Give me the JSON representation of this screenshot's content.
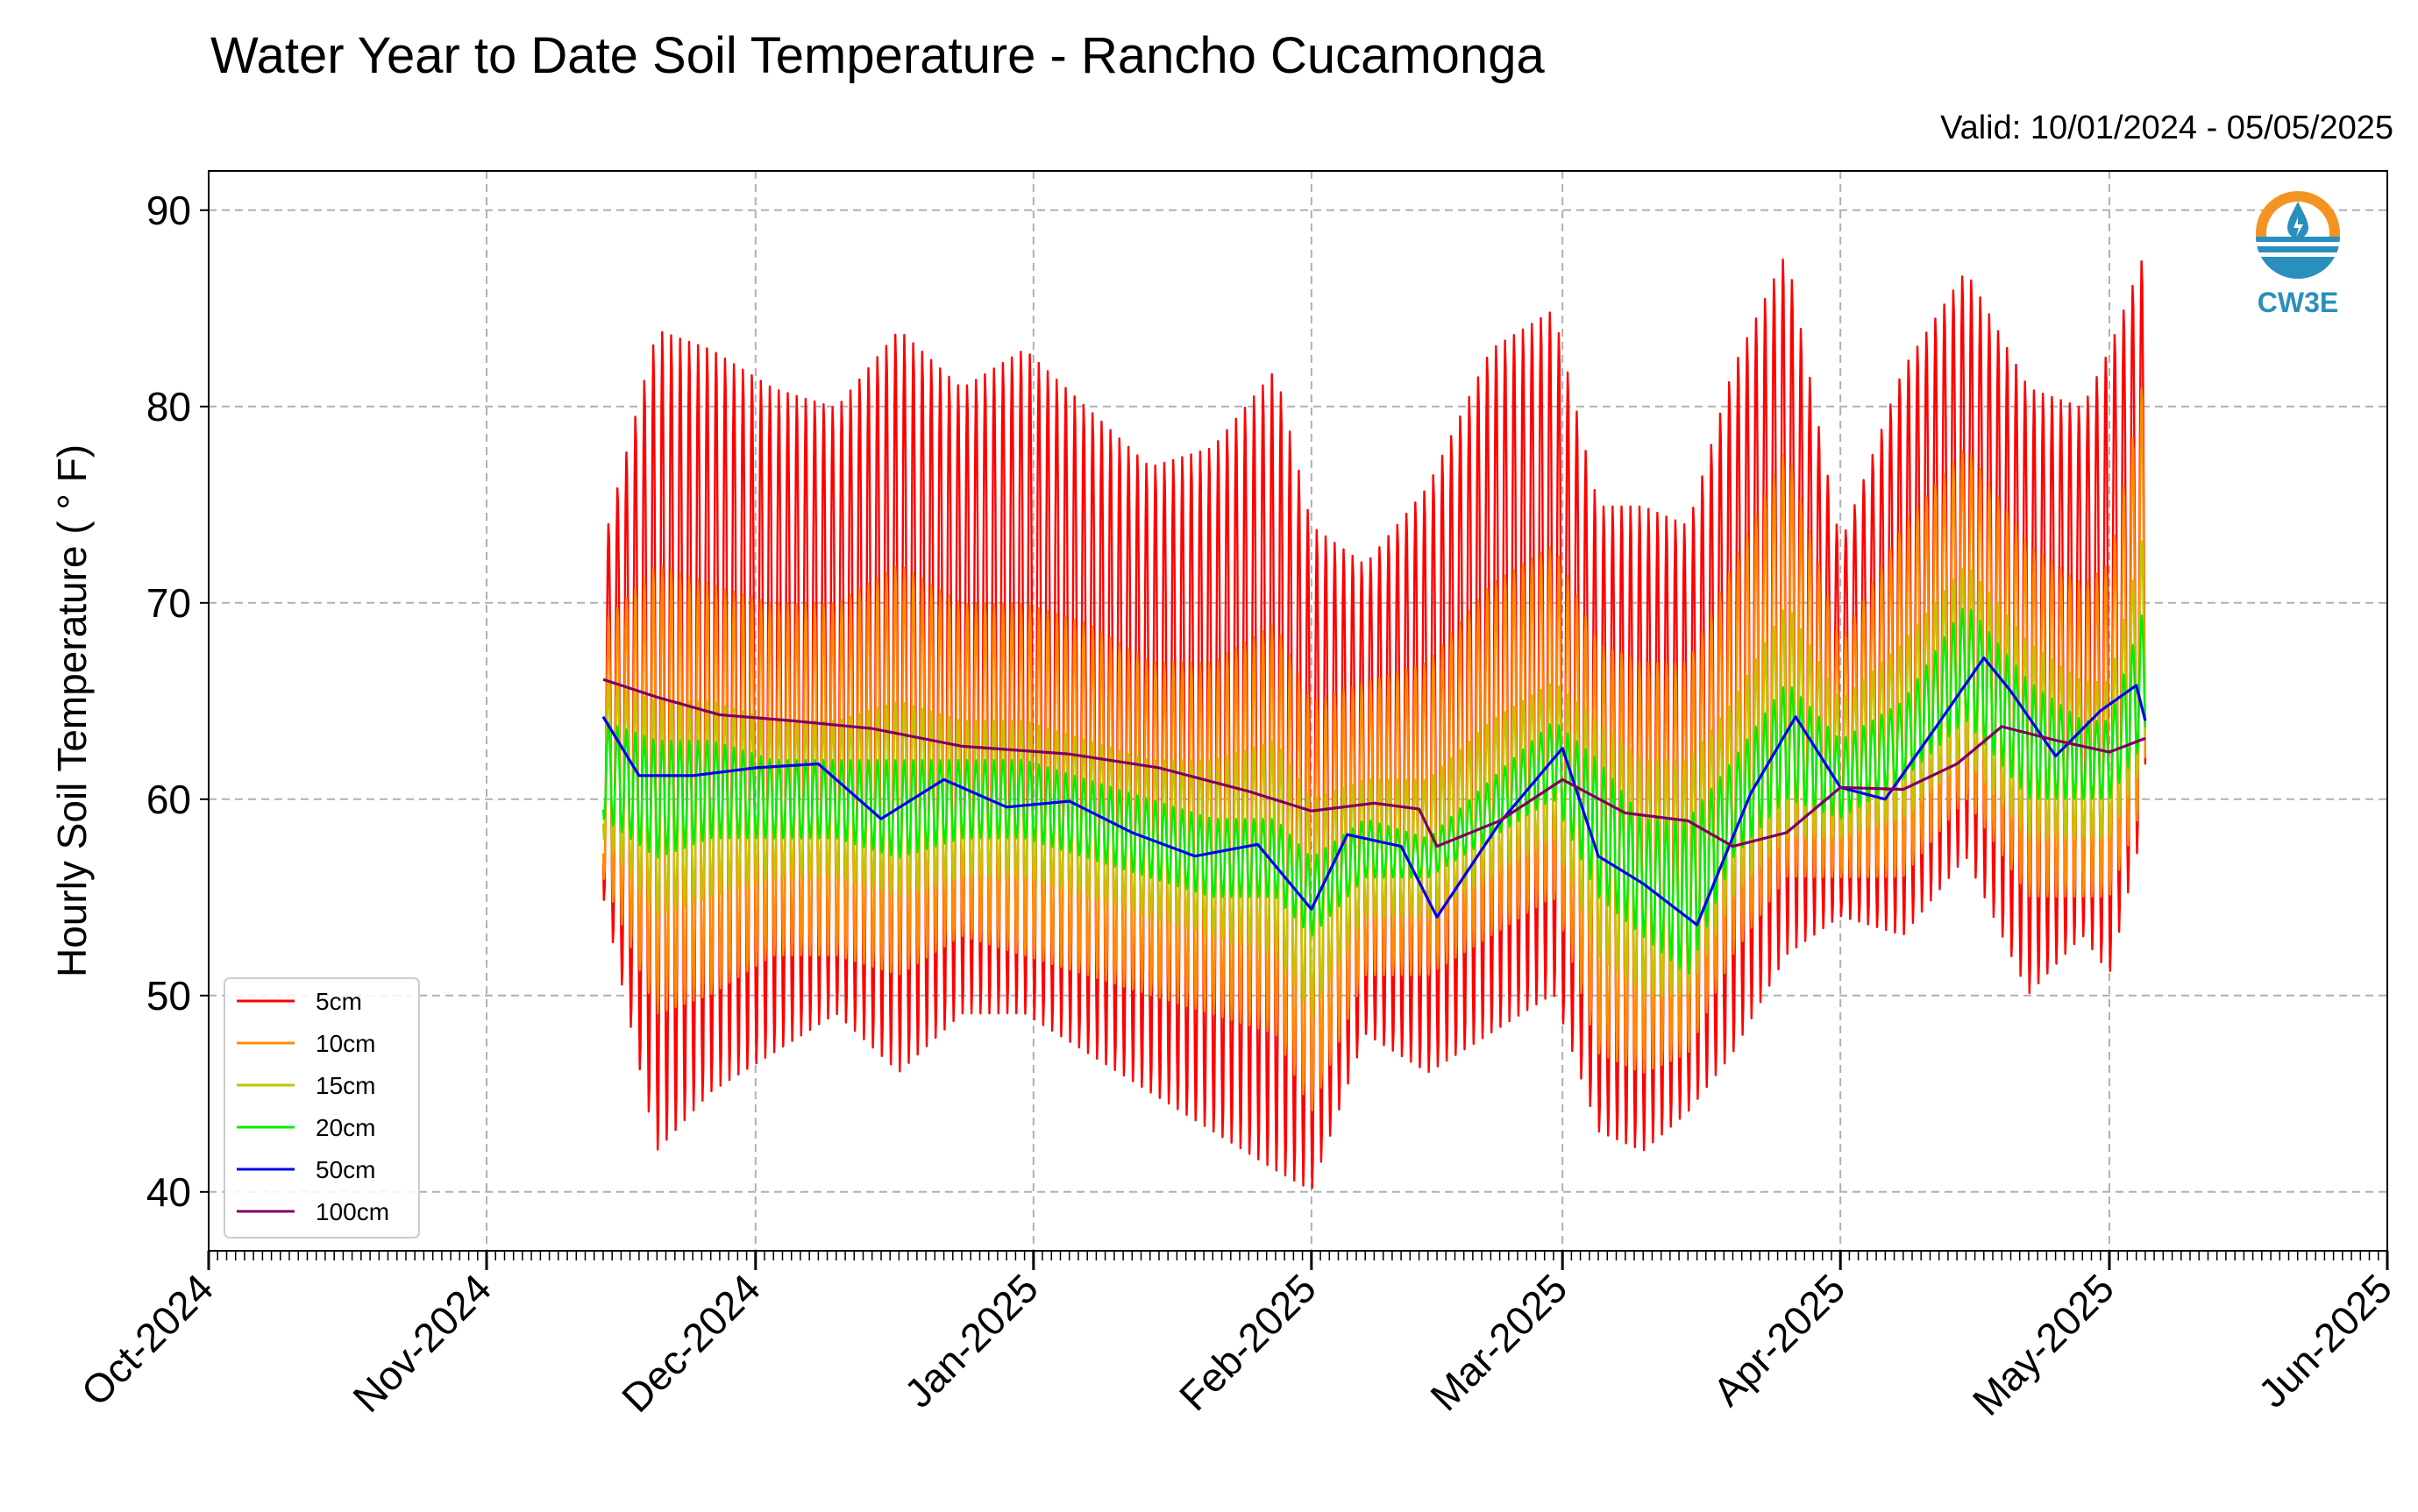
{
  "header": {
    "title": "Water Year to Date Soil Temperature - Rancho Cucamonga",
    "valid": "Valid: 10/01/2024 - 05/05/2025"
  },
  "logo": {
    "text": "CW3E",
    "icon": "water-drop-logo",
    "color": "#2a8fbd",
    "accent": "#f39422"
  },
  "chart_data": {
    "type": "line",
    "title": "Water Year to Date Soil Temperature - Rancho Cucamonga",
    "ylabel": "Hourly Soil Temperature ( ° F)",
    "xlabel": "",
    "ylim": [
      37,
      92
    ],
    "xlim": [
      "2024-10-01",
      "2025-06-01"
    ],
    "grid": true,
    "legend_position": "lower-left",
    "yticks": [
      40,
      50,
      60,
      70,
      80,
      90
    ],
    "xticks": [
      {
        "date": "2024-10-01",
        "label": "Oct-2024"
      },
      {
        "date": "2024-11-01",
        "label": "Nov-2024"
      },
      {
        "date": "2024-12-01",
        "label": "Dec-2024"
      },
      {
        "date": "2025-01-01",
        "label": "Jan-2025"
      },
      {
        "date": "2025-02-01",
        "label": "Feb-2025"
      },
      {
        "date": "2025-03-01",
        "label": "Mar-2025"
      },
      {
        "date": "2025-04-01",
        "label": "Apr-2025"
      },
      {
        "date": "2025-05-01",
        "label": "May-2025"
      },
      {
        "date": "2025-06-01",
        "label": "Jun-2025"
      }
    ],
    "series": [
      {
        "name": "5cm",
        "color": "#ff0000",
        "x": [
          "2024-11-14",
          "2024-11-20",
          "2024-11-26",
          "2024-12-03",
          "2024-12-10",
          "2024-12-17",
          "2024-12-24",
          "2024-12-31",
          "2025-01-07",
          "2025-01-14",
          "2025-01-21",
          "2025-01-28",
          "2025-02-01",
          "2025-02-07",
          "2025-02-14",
          "2025-02-21",
          "2025-02-28",
          "2025-03-05",
          "2025-03-10",
          "2025-03-15",
          "2025-03-20",
          "2025-03-26",
          "2025-04-01",
          "2025-04-08",
          "2025-04-15",
          "2025-04-22",
          "2025-04-28",
          "2025-05-01",
          "2025-05-05"
        ],
        "max": [
          73,
          84,
          83,
          81,
          80,
          84,
          81,
          83,
          80,
          77,
          78,
          82,
          74,
          72,
          76,
          83,
          85,
          75,
          75,
          74,
          82,
          88,
          73,
          82,
          87,
          81,
          80,
          83,
          88
        ],
        "min": [
          55,
          42,
          45,
          47,
          49,
          46,
          49,
          49,
          47,
          45,
          43,
          41,
          40,
          48,
          46,
          48,
          50,
          43,
          42,
          44,
          47,
          52,
          54,
          53,
          57,
          50,
          53,
          51,
          59
        ]
      },
      {
        "name": "10cm",
        "color": "#ff8c00",
        "x": [
          "2024-11-14",
          "2024-11-20",
          "2024-11-26",
          "2024-12-03",
          "2024-12-10",
          "2024-12-17",
          "2024-12-24",
          "2024-12-31",
          "2025-01-07",
          "2025-01-14",
          "2025-01-21",
          "2025-01-28",
          "2025-02-01",
          "2025-02-07",
          "2025-02-14",
          "2025-02-21",
          "2025-02-28",
          "2025-03-05",
          "2025-03-10",
          "2025-03-15",
          "2025-03-20",
          "2025-03-26",
          "2025-04-01",
          "2025-04-08",
          "2025-04-15",
          "2025-04-22",
          "2025-04-28",
          "2025-05-01",
          "2025-05-05"
        ],
        "max": [
          69,
          72,
          71,
          70,
          70,
          72,
          70,
          70,
          69,
          67,
          67,
          69,
          65,
          66,
          67,
          71,
          73,
          68,
          67,
          67,
          72,
          78,
          68,
          74,
          78,
          73,
          71,
          72,
          82
        ],
        "min": [
          56,
          49,
          50,
          52,
          52,
          51,
          53,
          52,
          51,
          50,
          49,
          48,
          44,
          51,
          51,
          53,
          55,
          47,
          46,
          47,
          52,
          56,
          56,
          56,
          60,
          55,
          55,
          55,
          60
        ]
      },
      {
        "name": "15cm",
        "color": "#c4c400",
        "x": [
          "2024-11-14",
          "2024-11-20",
          "2024-11-26",
          "2024-12-03",
          "2024-12-10",
          "2024-12-17",
          "2024-12-24",
          "2024-12-31",
          "2025-01-07",
          "2025-01-14",
          "2025-01-21",
          "2025-01-28",
          "2025-02-01",
          "2025-02-07",
          "2025-02-14",
          "2025-02-21",
          "2025-02-28",
          "2025-03-05",
          "2025-03-10",
          "2025-03-15",
          "2025-03-20",
          "2025-03-26",
          "2025-04-01",
          "2025-04-08",
          "2025-04-15",
          "2025-04-22",
          "2025-04-28",
          "2025-05-01",
          "2025-05-05"
        ],
        "max": [
          66,
          65,
          65,
          64,
          64,
          65,
          64,
          64,
          63,
          62,
          62,
          63,
          60,
          61,
          61,
          64,
          66,
          64,
          62,
          62,
          65,
          70,
          65,
          68,
          72,
          68,
          66,
          66,
          74
        ],
        "min": [
          58,
          54,
          55,
          56,
          56,
          55,
          56,
          56,
          55,
          54,
          53,
          52,
          49,
          54,
          54,
          56,
          58,
          52,
          50,
          50,
          55,
          58,
          58,
          59,
          62,
          58,
          58,
          58,
          62
        ]
      },
      {
        "name": "20cm",
        "color": "#00ee00",
        "x": [
          "2024-11-14",
          "2024-11-20",
          "2024-11-26",
          "2024-12-03",
          "2024-12-10",
          "2024-12-17",
          "2024-12-24",
          "2024-12-31",
          "2025-01-07",
          "2025-01-14",
          "2025-01-21",
          "2025-01-28",
          "2025-02-01",
          "2025-02-07",
          "2025-02-14",
          "2025-02-21",
          "2025-02-28",
          "2025-03-05",
          "2025-03-10",
          "2025-03-15",
          "2025-03-20",
          "2025-03-26",
          "2025-04-01",
          "2025-04-08",
          "2025-04-15",
          "2025-04-22",
          "2025-04-28",
          "2025-05-01",
          "2025-05-05"
        ],
        "max": [
          64,
          63,
          63,
          62,
          62,
          62,
          62,
          62,
          61,
          60,
          59,
          59,
          57,
          59,
          58,
          61,
          64,
          62,
          59,
          59,
          62,
          66,
          63,
          65,
          70,
          66,
          64,
          64,
          70
        ],
        "min": [
          59,
          57,
          58,
          58,
          58,
          57,
          58,
          58,
          57,
          56,
          55,
          55,
          53,
          56,
          56,
          58,
          60,
          55,
          53,
          51,
          57,
          60,
          59,
          61,
          64,
          60,
          60,
          60,
          63
        ]
      },
      {
        "name": "50cm",
        "color": "#0000ee",
        "x": [
          "2024-11-14",
          "2024-11-18",
          "2024-11-24",
          "2024-12-01",
          "2024-12-08",
          "2024-12-15",
          "2024-12-22",
          "2024-12-29",
          "2025-01-05",
          "2025-01-12",
          "2025-01-19",
          "2025-01-26",
          "2025-02-01",
          "2025-02-05",
          "2025-02-11",
          "2025-02-15",
          "2025-02-22",
          "2025-03-01",
          "2025-03-05",
          "2025-03-10",
          "2025-03-16",
          "2025-03-22",
          "2025-03-27",
          "2025-04-01",
          "2025-04-06",
          "2025-04-12",
          "2025-04-17",
          "2025-04-20",
          "2025-04-25",
          "2025-04-30",
          "2025-05-04",
          "2025-05-05"
        ],
        "max": [
          64.2,
          61.2,
          61.2,
          61.6,
          61.8,
          59.0,
          61.0,
          59.6,
          59.9,
          58.3,
          57.1,
          57.7,
          54.4,
          58.2,
          57.6,
          54.0,
          58.8,
          62.6,
          57.1,
          55.7,
          53.6,
          60.3,
          64.2,
          60.6,
          60.0,
          63.9,
          67.2,
          65.5,
          62.2,
          64.5,
          65.8,
          64.0
        ],
        "min": [
          64.2,
          61.2,
          61.2,
          61.6,
          61.8,
          59.0,
          61.0,
          59.6,
          59.9,
          58.3,
          57.1,
          57.7,
          54.4,
          58.2,
          57.6,
          54.0,
          58.8,
          62.6,
          57.1,
          55.7,
          53.6,
          60.3,
          64.2,
          60.6,
          60.0,
          63.9,
          67.2,
          65.5,
          62.2,
          64.5,
          65.8,
          64.0
        ]
      },
      {
        "name": "100cm",
        "color": "#800060",
        "x": [
          "2024-11-14",
          "2024-11-20",
          "2024-11-27",
          "2024-12-05",
          "2024-12-14",
          "2024-12-24",
          "2025-01-05",
          "2025-01-15",
          "2025-01-25",
          "2025-02-01",
          "2025-02-08",
          "2025-02-13",
          "2025-02-15",
          "2025-02-22",
          "2025-03-01",
          "2025-03-08",
          "2025-03-15",
          "2025-03-20",
          "2025-03-26",
          "2025-04-01",
          "2025-04-08",
          "2025-04-14",
          "2025-04-19",
          "2025-04-25",
          "2025-05-01",
          "2025-05-05"
        ],
        "max": [
          66.1,
          65.2,
          64.3,
          64.0,
          63.6,
          62.7,
          62.3,
          61.6,
          60.4,
          59.4,
          59.8,
          59.5,
          57.6,
          58.9,
          61.0,
          59.3,
          58.9,
          57.6,
          58.3,
          60.6,
          60.5,
          61.8,
          63.7,
          63.0,
          62.4,
          63.1
        ],
        "min": [
          66.1,
          65.2,
          64.3,
          64.0,
          63.6,
          62.7,
          62.3,
          61.6,
          60.4,
          59.4,
          59.8,
          59.5,
          57.6,
          58.9,
          61.0,
          59.3,
          58.9,
          57.6,
          58.3,
          60.6,
          60.5,
          61.8,
          63.7,
          63.0,
          62.4,
          63.1
        ]
      }
    ]
  }
}
